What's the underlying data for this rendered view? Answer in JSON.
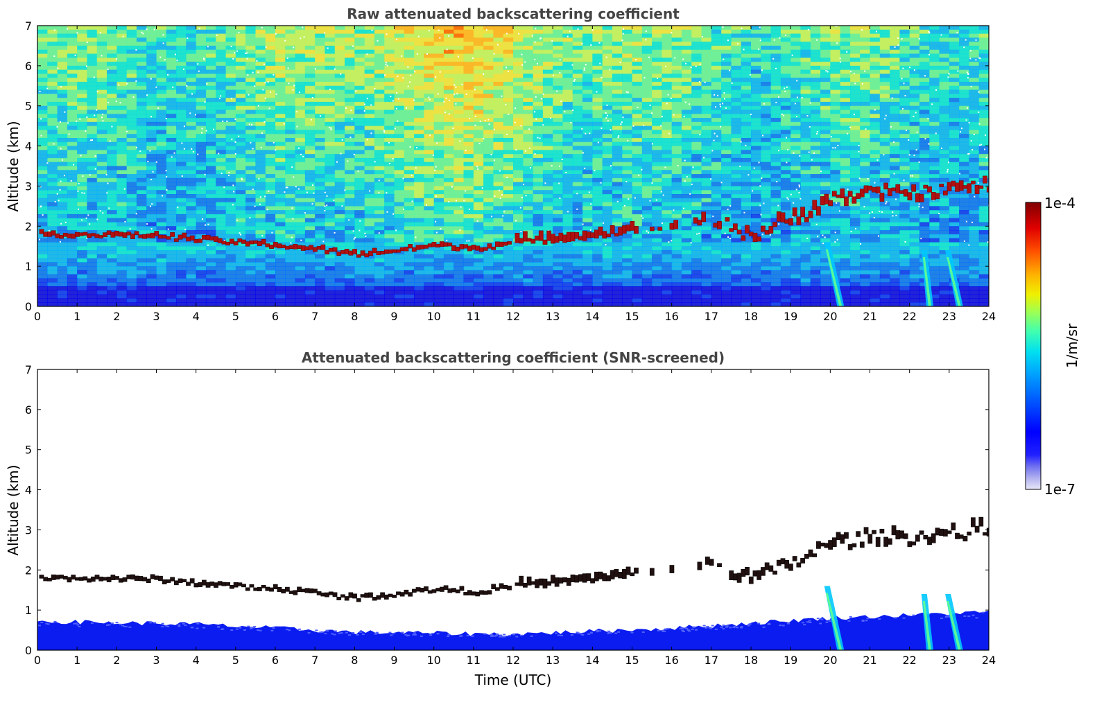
{
  "chart_data": [
    {
      "type": "heatmap",
      "title": "Raw attenuated backscattering coefficient",
      "xlabel": "",
      "ylabel": "Altitude (km)",
      "xlim": [
        0,
        24
      ],
      "ylim": [
        0,
        7
      ],
      "x_ticks": [
        0,
        1,
        2,
        3,
        4,
        5,
        6,
        7,
        8,
        9,
        10,
        11,
        12,
        13,
        14,
        15,
        16,
        17,
        18,
        19,
        20,
        21,
        22,
        23,
        24
      ],
      "y_ticks": [
        0,
        1,
        2,
        3,
        4,
        5,
        6,
        7
      ],
      "cloud_layer_km": [
        [
          0,
          1.75
        ],
        [
          1,
          1.75
        ],
        [
          2,
          1.73
        ],
        [
          3,
          1.72
        ],
        [
          4,
          1.62
        ],
        [
          5,
          1.55
        ],
        [
          6,
          1.48
        ],
        [
          7,
          1.38
        ],
        [
          8,
          1.25
        ],
        [
          9,
          1.35
        ],
        [
          10,
          1.48
        ],
        [
          11,
          1.4
        ],
        [
          12,
          1.55
        ],
        [
          13,
          1.62
        ],
        [
          14,
          1.72
        ],
        [
          15,
          1.85
        ],
        [
          16,
          1.95
        ],
        [
          17,
          2.1
        ],
        [
          18,
          1.7
        ],
        [
          19,
          2.1
        ],
        [
          20,
          2.6
        ],
        [
          21,
          2.75
        ],
        [
          22,
          2.75
        ],
        [
          23,
          2.85
        ],
        [
          24,
          2.95
        ]
      ],
      "precipitation_streaks": [
        [
          19.85,
          20.35
        ],
        [
          22.3,
          22.6
        ],
        [
          22.9,
          23.35
        ]
      ],
      "background": "noisy raw signal, high values aloft"
    },
    {
      "type": "heatmap",
      "title": "Attenuated backscattering coefficient (SNR-screened)",
      "xlabel": "Time (UTC)",
      "ylabel": "Altitude (km)",
      "xlim": [
        0,
        24
      ],
      "ylim": [
        0,
        7
      ],
      "x_ticks": [
        0,
        1,
        2,
        3,
        4,
        5,
        6,
        7,
        8,
        9,
        10,
        11,
        12,
        13,
        14,
        15,
        16,
        17,
        18,
        19,
        20,
        21,
        22,
        23,
        24
      ],
      "y_ticks": [
        0,
        1,
        2,
        3,
        4,
        5,
        6,
        7
      ],
      "cloud_layer_km": [
        [
          0,
          1.75
        ],
        [
          1,
          1.75
        ],
        [
          2,
          1.73
        ],
        [
          3,
          1.72
        ],
        [
          4,
          1.62
        ],
        [
          5,
          1.55
        ],
        [
          6,
          1.48
        ],
        [
          7,
          1.38
        ],
        [
          8,
          1.25
        ],
        [
          9,
          1.35
        ],
        [
          10,
          1.48
        ],
        [
          11,
          1.4
        ],
        [
          12,
          1.55
        ],
        [
          13,
          1.62
        ],
        [
          14,
          1.72
        ],
        [
          15,
          1.85
        ],
        [
          16,
          1.95
        ],
        [
          17,
          2.1
        ],
        [
          18,
          1.7
        ],
        [
          19,
          2.1
        ],
        [
          20,
          2.6
        ],
        [
          21,
          2.75
        ],
        [
          22,
          2.75
        ],
        [
          23,
          2.85
        ],
        [
          24,
          2.95
        ]
      ],
      "boundary_layer_top_km": [
        [
          0,
          0.72
        ],
        [
          4,
          0.65
        ],
        [
          8,
          0.45
        ],
        [
          12,
          0.4
        ],
        [
          16,
          0.55
        ],
        [
          20,
          0.8
        ],
        [
          24,
          0.95
        ]
      ],
      "precipitation_streaks": [
        [
          19.85,
          20.35
        ],
        [
          22.3,
          22.6
        ],
        [
          22.9,
          23.35
        ]
      ],
      "background": "screened (white)"
    }
  ],
  "colorbar": {
    "label": "1/m/sr",
    "max_label": "1e-4",
    "min_label": "1e-7",
    "colors": [
      "#e8e8f8",
      "#b8b8f0",
      "#8080f0",
      "#3030ff",
      "#0000ff",
      "#0040ff",
      "#0080ff",
      "#00b8ff",
      "#00e8e8",
      "#40ffb0",
      "#90ff60",
      "#e0ff20",
      "#ffd000",
      "#ff9000",
      "#ff4000",
      "#e00000",
      "#8b0000"
    ]
  }
}
